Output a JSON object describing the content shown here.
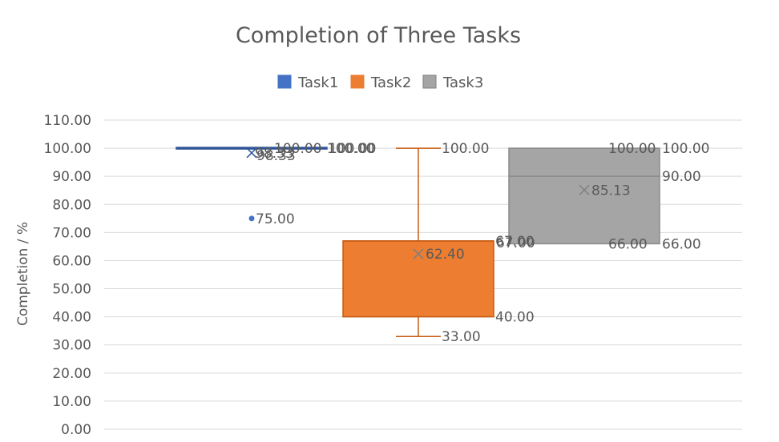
{
  "chart_data": {
    "type": "boxplot",
    "title": "Completion of Three Tasks",
    "xlabel": "",
    "ylabel": "Completion / %",
    "ylim": [
      0,
      110
    ],
    "yticks": [
      0,
      10,
      20,
      30,
      40,
      50,
      60,
      70,
      80,
      90,
      100,
      110
    ],
    "ytick_labels": [
      "0.00",
      "10.00",
      "20.00",
      "30.00",
      "40.00",
      "50.00",
      "60.00",
      "70.00",
      "80.00",
      "90.00",
      "100.00",
      "110.00"
    ],
    "grid": true,
    "legend_position": "top",
    "series": [
      {
        "name": "Task1",
        "color": "#4472c4",
        "min": 100,
        "q1": 100,
        "median": 100,
        "q3": 100,
        "max": 100,
        "mean": 98.33,
        "outliers": [
          75
        ],
        "labels": {
          "max": "100.00",
          "q3": "100.00",
          "median": "100.00",
          "mean": "98.33",
          "mean_dup": "98.33",
          "outliers": [
            "75.00"
          ]
        }
      },
      {
        "name": "Task2",
        "color": "#ed7d31",
        "min": 33,
        "q1": 40,
        "median": 67,
        "q3": 67,
        "max": 100,
        "mean": 62.4,
        "outliers": [],
        "labels": {
          "max": "100.00",
          "q3": "67.00",
          "median": "67.00",
          "q1": "40.00",
          "min": "33.00",
          "mean": "62.40"
        }
      },
      {
        "name": "Task3",
        "color": "#a5a5a5",
        "min": 66,
        "q1": 66,
        "median": 90,
        "q3": 100,
        "max": 100,
        "mean": 85.13,
        "outliers": [],
        "labels": {
          "max": "100.00",
          "q3": "100.00",
          "median": "90.00",
          "q1": "66.00",
          "min": "66.00",
          "mean": "85.13"
        }
      }
    ]
  }
}
